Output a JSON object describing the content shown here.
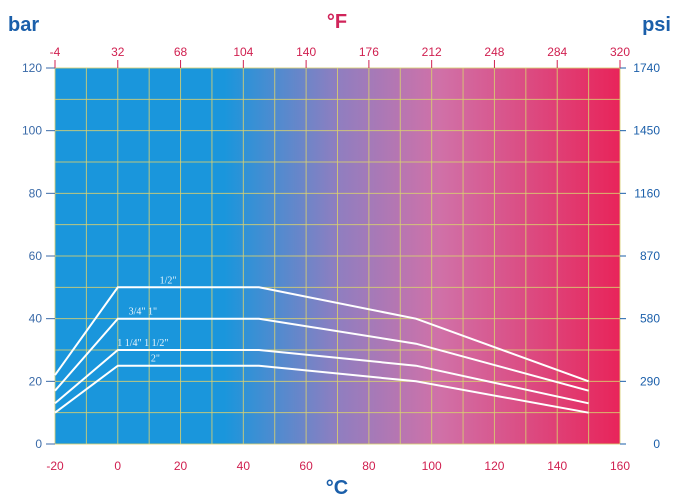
{
  "chart_data": {
    "type": "line",
    "title": "",
    "units": {
      "left": "bar",
      "top": "°F",
      "right": "psi",
      "bottom": "°C"
    },
    "xlim": [
      -20,
      160
    ],
    "ylim": [
      0,
      120
    ],
    "grid": true,
    "x_ticks": [
      "-20",
      "0",
      "20",
      "40",
      "60",
      "80",
      "100",
      "120",
      "140",
      "160"
    ],
    "x_ticks_values": [
      -20,
      0,
      20,
      40,
      60,
      80,
      100,
      120,
      140,
      160
    ],
    "top_ticks": [
      "-4",
      "32",
      "68",
      "104",
      "140",
      "176",
      "212",
      "248",
      "284",
      "320"
    ],
    "y_ticks": [
      "0",
      "20",
      "40",
      "60",
      "80",
      "100",
      "120"
    ],
    "y_ticks_values": [
      0,
      20,
      40,
      60,
      80,
      100,
      120
    ],
    "right_ticks": [
      "0",
      "290",
      "580",
      "870",
      "1160",
      "1450",
      "1740"
    ],
    "colors": {
      "cold": "#1a96dc",
      "hot": "#e8245a",
      "grid": "#d8d070",
      "unit": "#1b5faa",
      "unit_top": "#d0245a",
      "tick_left": "#3a6aa8",
      "tick_top": "#d02050",
      "line": "#ffffff"
    },
    "series": [
      {
        "name": "1/2\"",
        "x": [
          -20,
          0,
          45,
          95,
          150
        ],
        "y": [
          22,
          50,
          50,
          40,
          20
        ]
      },
      {
        "name": "3/4\" 1\"",
        "x": [
          -20,
          0,
          45,
          95,
          150
        ],
        "y": [
          17,
          40,
          40,
          32,
          17
        ]
      },
      {
        "name": "1 1/4\" 1 1/2\"",
        "x": [
          -20,
          0,
          45,
          95,
          150
        ],
        "y": [
          13,
          30,
          30,
          25,
          13
        ]
      },
      {
        "name": "2\"",
        "x": [
          -20,
          0,
          45,
          95,
          150
        ],
        "y": [
          10,
          25,
          25,
          20,
          10
        ]
      }
    ]
  }
}
